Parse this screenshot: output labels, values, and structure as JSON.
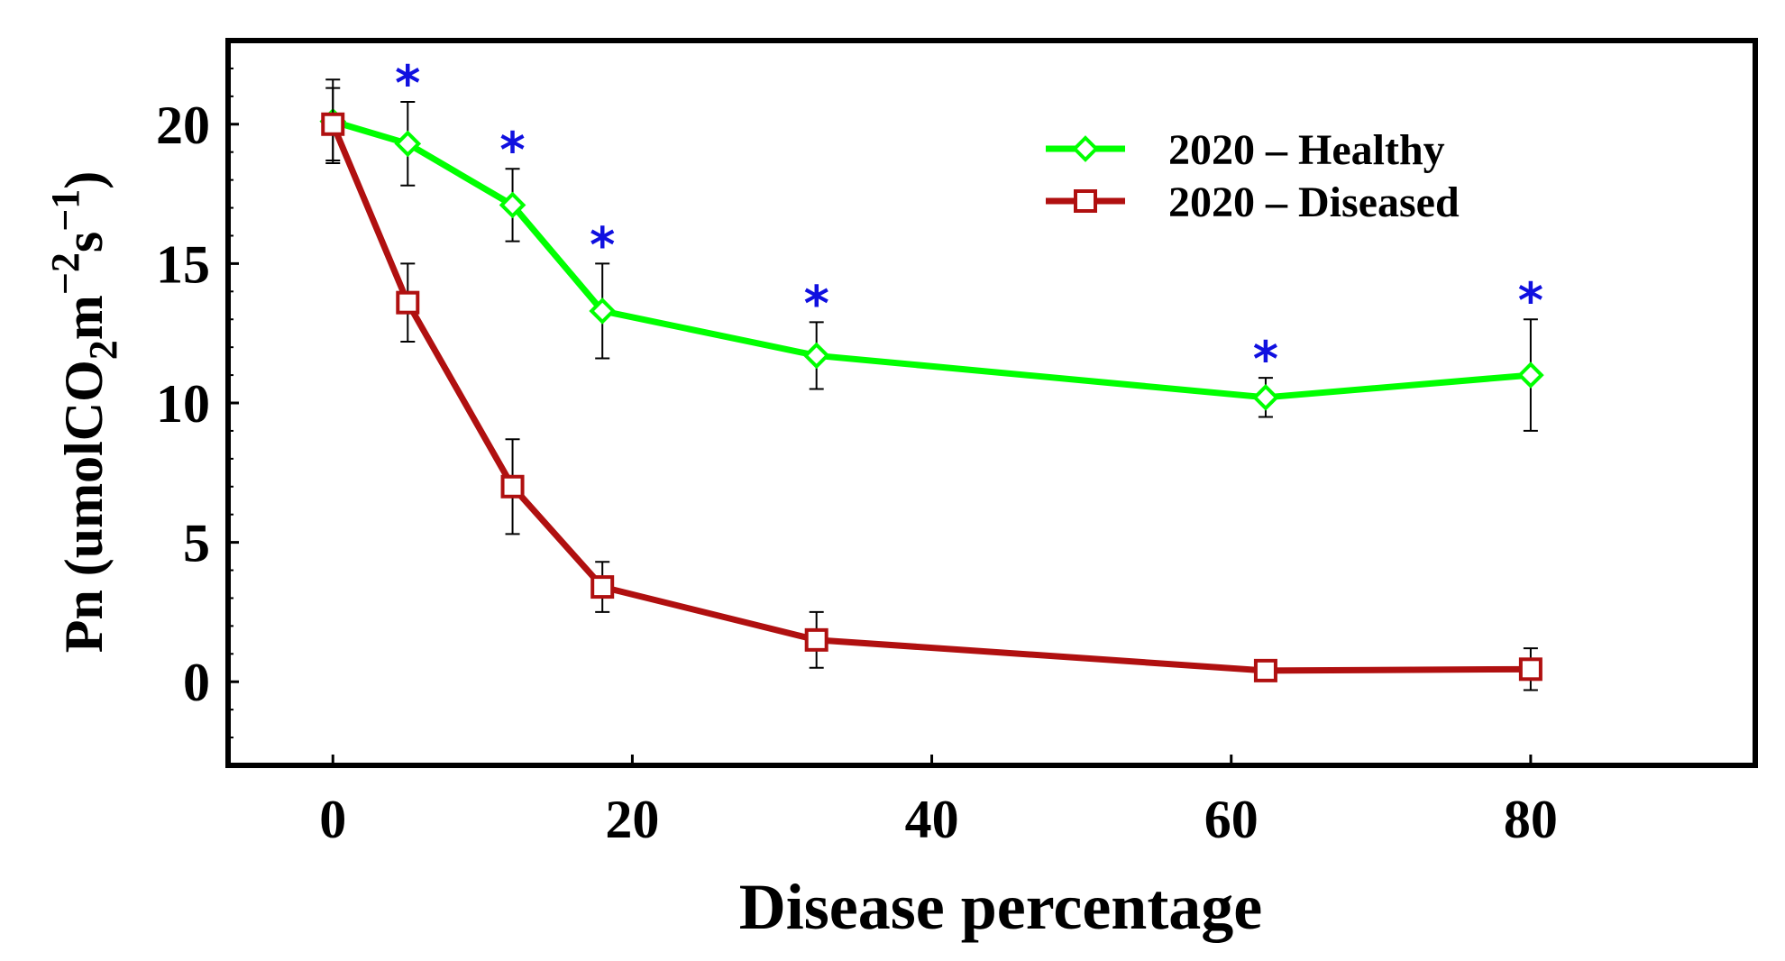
{
  "chart_data": {
    "type": "line",
    "title": "",
    "xlabel": "Disease percentage",
    "ylabel": {
      "main": "Pn (umolCO",
      "sub1": "2",
      "mid": "m",
      "sup1": "−2",
      "s": "s",
      "sup2": "−1",
      "close": ")"
    },
    "xlim": [
      -7,
      95
    ],
    "ylim": [
      -3,
      23
    ],
    "x_ticks": [
      0,
      20,
      40,
      60,
      80
    ],
    "x_tick_labels": [
      "0",
      "20",
      "40",
      "60",
      "80"
    ],
    "y_ticks": [
      0,
      5,
      10,
      15,
      20
    ],
    "y_tick_labels": [
      "0",
      "5",
      "10",
      "15",
      "20"
    ],
    "x": [
      0,
      5,
      12,
      18,
      32.3,
      62.3,
      80
    ],
    "series": [
      {
        "name": "2020 – Healthy",
        "color": "#00ff00",
        "marker": "diamond",
        "values": [
          20.1,
          19.3,
          17.1,
          13.3,
          11.7,
          10.2,
          11.0
        ],
        "err": [
          1.5,
          1.5,
          1.3,
          1.7,
          1.2,
          0.7,
          2.0
        ]
      },
      {
        "name": "2020 – Diseased",
        "color": "#b01010",
        "marker": "square",
        "values": [
          20.0,
          13.6,
          7.0,
          3.4,
          1.5,
          0.4,
          0.45
        ],
        "err": [
          1.3,
          1.4,
          1.7,
          0.9,
          1.0,
          0.0,
          0.75
        ]
      }
    ],
    "significance": {
      "symbol": "*",
      "color": "#1010e0",
      "at_x": [
        5,
        12,
        18,
        32.3,
        62.3,
        80
      ]
    },
    "legend_position": "top-right",
    "grid": false
  }
}
